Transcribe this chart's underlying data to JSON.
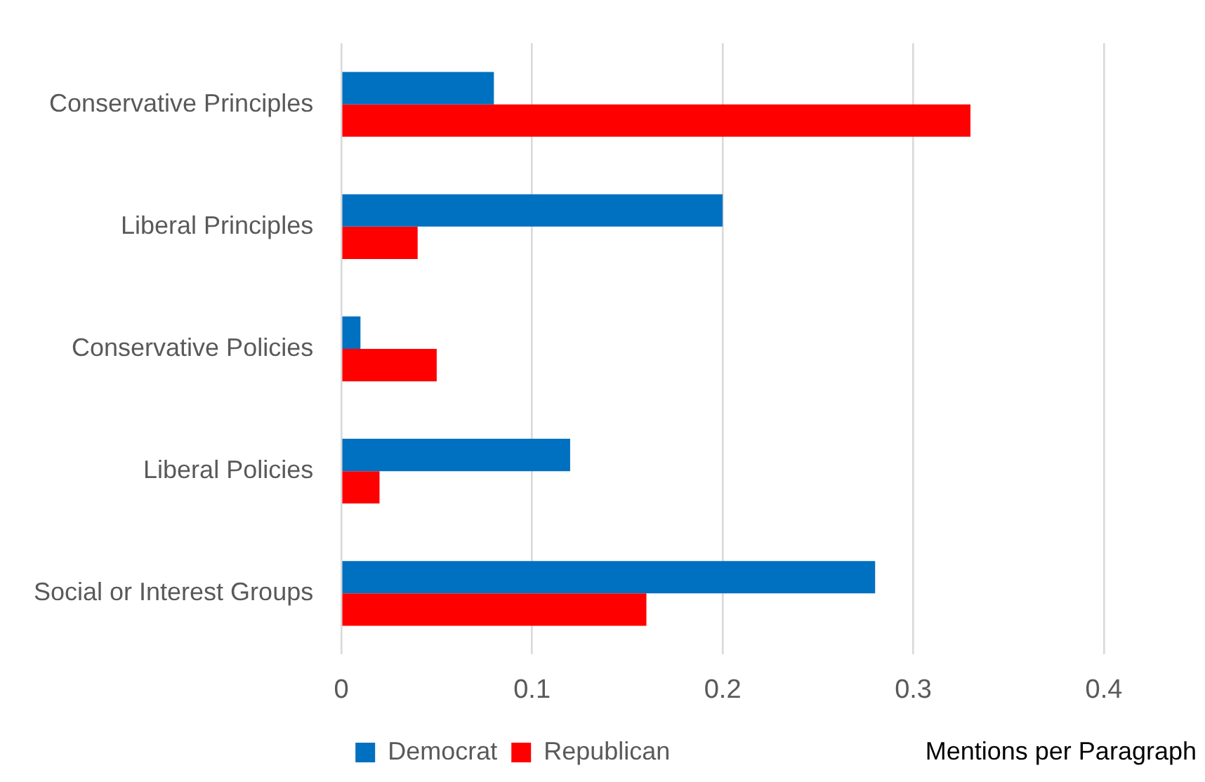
{
  "chart_data": {
    "type": "bar",
    "orientation": "horizontal",
    "xlabel": "Mentions per Paragraph",
    "categories": [
      "Conservative Principles",
      "Liberal Principles",
      "Conservative Policies",
      "Liberal Policies",
      "Social or Interest Groups"
    ],
    "series": [
      {
        "name": "Democrat",
        "color": "#0070c0",
        "values": [
          0.08,
          0.2,
          0.01,
          0.12,
          0.28
        ]
      },
      {
        "name": "Republican",
        "color": "#ff0000",
        "values": [
          0.33,
          0.04,
          0.05,
          0.02,
          0.16
        ]
      }
    ],
    "xlim": [
      0,
      0.4
    ],
    "xticks": [
      0,
      0.1,
      0.2,
      0.3,
      0.4
    ],
    "grid": "x",
    "legend": "bottom"
  }
}
